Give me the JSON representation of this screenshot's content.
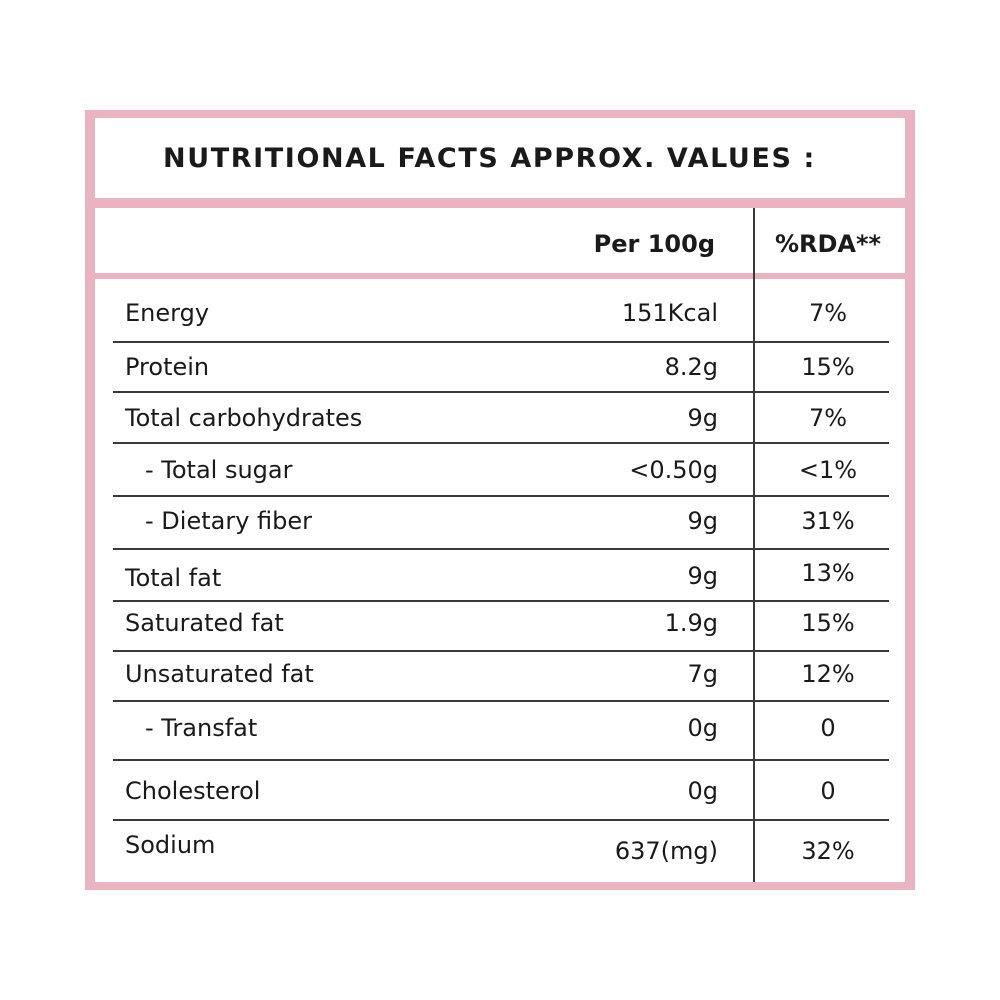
{
  "title": "NUTRITIONAL FACTS APPROX. VALUES :",
  "headers": {
    "per100": "Per 100g",
    "rda": "%RDA**"
  },
  "rows": [
    {
      "name": "Energy",
      "value": "151Kcal",
      "rda": "7%"
    },
    {
      "name": "Protein",
      "value": "8.2g",
      "rda": "15%"
    },
    {
      "name": "Total carbohydrates",
      "value": "9g",
      "rda": "7%"
    },
    {
      "name": "- Total sugar",
      "value": "<0.50g",
      "rda": "<1%"
    },
    {
      "name": "- Dietary fiber",
      "value": "9g",
      "rda": "31%"
    },
    {
      "name": "Total fat",
      "value": "9g",
      "rda": "13%"
    },
    {
      "name": "Saturated fat",
      "value": "1.9g",
      "rda": "15%"
    },
    {
      "name": "Unsaturated fat",
      "value": "7g",
      "rda": "12%"
    },
    {
      "name": "- Transfat",
      "value": "0g",
      "rda": "0"
    },
    {
      "name": "Cholesterol",
      "value": "0g",
      "rda": "0"
    },
    {
      "name": "Sodium",
      "value": "637(mg)",
      "rda": "32%"
    }
  ],
  "colors": {
    "frame": "#eab3c2",
    "rules": "#3a3a3a",
    "text": "#1a1a1a"
  }
}
